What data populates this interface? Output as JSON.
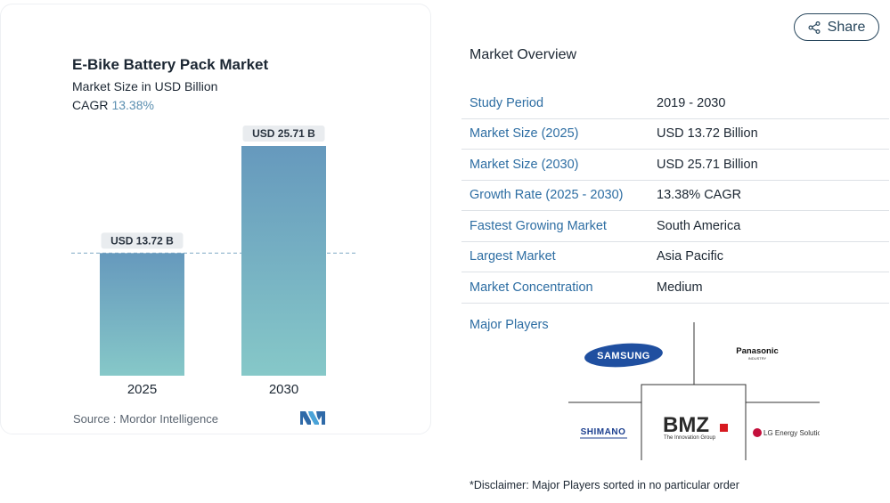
{
  "chart_card": {
    "title": "E-Bike Battery Pack Market",
    "subtitle": "Market Size in USD Billion",
    "cagr_label": "CAGR",
    "cagr_value": "13.38%",
    "source_label": "Source :",
    "source_value": "Mordor Intelligence"
  },
  "chart_data": {
    "type": "bar",
    "title": "E-Bike Battery Pack Market",
    "subtitle": "Market Size in USD Billion",
    "categories": [
      "2025",
      "2030"
    ],
    "values": [
      13.72,
      25.71
    ],
    "data_labels": [
      "USD 13.72 B",
      "USD 25.71 B"
    ],
    "ylim": [
      0,
      25.71
    ],
    "grid": false,
    "reference_line": "dashed at 2025 value",
    "bar_gradient": [
      "#6699bd",
      "#86c8c8"
    ]
  },
  "share": {
    "label": "Share"
  },
  "overview": {
    "title": "Market Overview",
    "rows": [
      {
        "key": "Study Period",
        "value": "2019 - 2030"
      },
      {
        "key": "Market Size (2025)",
        "value": "USD 13.72 Billion"
      },
      {
        "key": "Market Size (2030)",
        "value": "USD 25.71 Billion"
      },
      {
        "key": "Growth Rate (2025 - 2030)",
        "value": "13.38% CAGR"
      },
      {
        "key": "Fastest Growing Market",
        "value": "South America"
      },
      {
        "key": "Largest Market",
        "value": "Asia Pacific"
      },
      {
        "key": "Market Concentration",
        "value": "Medium"
      }
    ]
  },
  "players": {
    "title": "Major Players",
    "samsung": "SAMSUNG",
    "panasonic": "Panasonic",
    "panasonic_sub": "INDUSTRY",
    "shimano": "SHIMANO",
    "bmz": "BMZ",
    "bmz_sub": "The Innovation Group",
    "lg": "LG Energy Solution"
  },
  "disclaimer": "*Disclaimer: Major Players sorted in no particular order",
  "colors": {
    "accent_blue": "#2e6ea3",
    "cagr_blue": "#5b8fb0",
    "bar_top": "#6699bd",
    "bar_bottom": "#86c8c8",
    "samsung_blue": "#1f4fa0",
    "lg_red": "#c4103c",
    "bmz_red": "#d71920"
  }
}
